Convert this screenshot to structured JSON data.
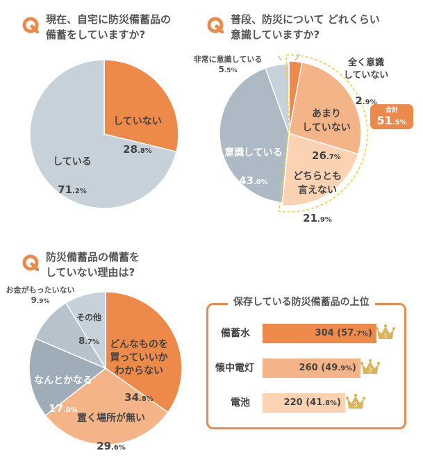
{
  "q1": {
    "title": "現在、自宅に防災備蓄品の\n備蓄をしていますか?",
    "chart_data": {
      "type": "pie",
      "categories": [
        "していない",
        "している"
      ],
      "values": [
        28.8,
        71.2
      ],
      "unit": "%",
      "colors": [
        "#ed8a4a",
        "#c7d1da"
      ]
    },
    "labels": [
      {
        "name": "していない",
        "int": "28",
        "dec": ".8%"
      },
      {
        "name": "している",
        "int": "71",
        "dec": ".2%"
      }
    ]
  },
  "q2": {
    "title": "普段、防災について どれくらい\n意識していますか?",
    "chart_data": {
      "type": "pie",
      "categories": [
        "全く意識していない",
        "あまりしていない",
        "どちらとも言えない",
        "意識している",
        "非常に意識している"
      ],
      "values": [
        2.9,
        26.7,
        21.9,
        43.0,
        5.5
      ],
      "unit": "%",
      "colors": [
        "#ed8a4a",
        "#f5b488",
        "#fbd3b3",
        "#adb9c4",
        "#c7d1da"
      ]
    },
    "labels": [
      {
        "name": "全く意識\nしていない",
        "int": "2",
        "dec": ".9%"
      },
      {
        "name": "あまり\nしていない",
        "int": "26",
        "dec": ".7%"
      },
      {
        "name": "どちらとも\n言えない",
        "int": "21",
        "dec": ".9%"
      },
      {
        "name": "意識している",
        "int": "43",
        "dec": ".0%"
      },
      {
        "name": "非常に意識している",
        "int": "5",
        "dec": ".5%"
      }
    ],
    "total_badge": {
      "label": "合計",
      "int": "51",
      "dec": ".5%"
    }
  },
  "q3": {
    "title": "防災備蓄品の備蓄を\nしていない理由は?",
    "chart_data": {
      "type": "pie",
      "categories": [
        "どんなものを買っていいかわからない",
        "置く場所が無い",
        "なんとかなる",
        "お金がもったいない",
        "その他"
      ],
      "values": [
        34.8,
        29.6,
        17.0,
        9.9,
        8.7
      ],
      "unit": "%",
      "colors": [
        "#ed8a4a",
        "#f5b488",
        "#9fadb9",
        "#b6c2cc",
        "#c7d1da"
      ]
    },
    "labels": [
      {
        "name": "どんなものを\n買っていいか\nわからない",
        "int": "34",
        "dec": ".8%"
      },
      {
        "name": "置く場所が無い",
        "int": "29",
        "dec": ".6%"
      },
      {
        "name": "なんとかなる",
        "int": "17",
        "dec": ".0%"
      },
      {
        "name": "お金がもったいない",
        "int": "9",
        "dec": ".9%"
      },
      {
        "name": "その他",
        "int": "8",
        "dec": ".7%"
      }
    ]
  },
  "ranking": {
    "title": "保存している防災備蓄品の上位",
    "chart_data": {
      "type": "bar",
      "categories": [
        "備蓄水",
        "懐中電灯",
        "電池"
      ],
      "values": [
        304,
        260,
        220
      ],
      "percents": [
        57.7,
        49.9,
        41.8
      ],
      "colors": [
        "#ed8a4a",
        "#f5b488",
        "#fbd3b3"
      ]
    },
    "rows": [
      {
        "name": "備蓄水",
        "val": "304",
        "pct_open": "(57",
        "pct_dec": ".7%",
        "pct_close": ")",
        "rank": "1"
      },
      {
        "name": "懐中電灯",
        "val": "260",
        "pct_open": "(49",
        "pct_dec": ".9%",
        "pct_close": ")",
        "rank": "2"
      },
      {
        "name": "電池",
        "val": "220",
        "pct_open": "(41",
        "pct_dec": ".8%",
        "pct_close": ")",
        "rank": "3"
      }
    ]
  },
  "q_icon": "Q",
  "crown_color": "#d9b45c"
}
